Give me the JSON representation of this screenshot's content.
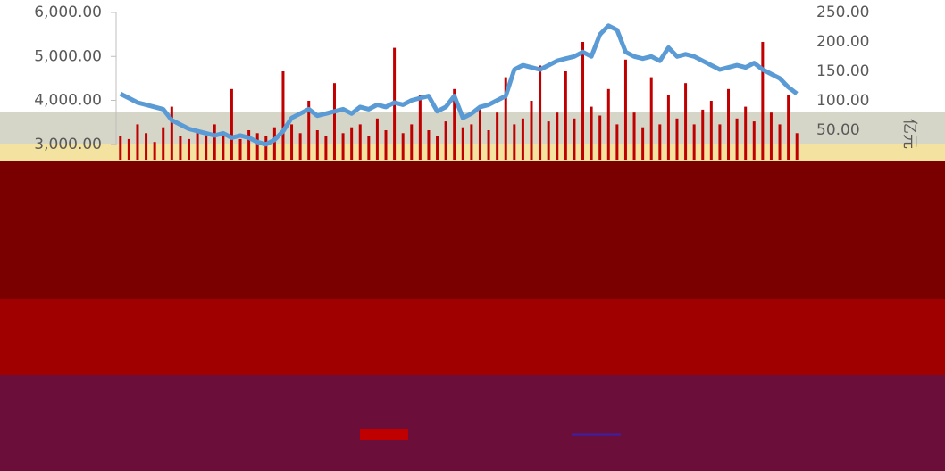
{
  "chart_data": {
    "type": "bar-line",
    "y2label": "亿元",
    "ylim": [
      2650,
      6000
    ],
    "yticks": [
      {
        "value": 6000,
        "label": "6,000.00"
      },
      {
        "value": 5000,
        "label": "5,000.00"
      },
      {
        "value": 4000,
        "label": "4,000.00"
      },
      {
        "value": 3000,
        "label": "3,000.00"
      }
    ],
    "y2lim": [
      0,
      250
    ],
    "y2ticks": [
      {
        "value": 250,
        "label": "250.00"
      },
      {
        "value": 200,
        "label": "200.00"
      },
      {
        "value": 150,
        "label": "150.00"
      },
      {
        "value": 100,
        "label": "100.00"
      },
      {
        "value": 50,
        "label": "50.00"
      }
    ],
    "series": [
      {
        "type": "bar",
        "axis": "y2",
        "color": "#c00000",
        "values": [
          40,
          35,
          60,
          45,
          30,
          55,
          90,
          40,
          35,
          50,
          45,
          60,
          40,
          120,
          35,
          50,
          45,
          40,
          55,
          150,
          60,
          45,
          100,
          50,
          40,
          130,
          45,
          55,
          60,
          40,
          70,
          50,
          190,
          45,
          60,
          110,
          50,
          40,
          65,
          120,
          55,
          60,
          90,
          50,
          80,
          140,
          60,
          70,
          100,
          160,
          65,
          80,
          150,
          70,
          200,
          90,
          75,
          120,
          60,
          170,
          80,
          55,
          140,
          60,
          110,
          70,
          130,
          60,
          85,
          100,
          60,
          120,
          70,
          90,
          65,
          200,
          80,
          60,
          110,
          45
        ]
      },
      {
        "type": "line",
        "axis": "y",
        "color": "#5b9bd5",
        "values": [
          4150,
          4050,
          3950,
          3900,
          3850,
          3800,
          3550,
          3450,
          3350,
          3300,
          3250,
          3200,
          3250,
          3150,
          3200,
          3150,
          3050,
          3000,
          3100,
          3300,
          3600,
          3700,
          3800,
          3650,
          3700,
          3750,
          3800,
          3700,
          3850,
          3800,
          3900,
          3850,
          3950,
          3900,
          4000,
          4050,
          4100,
          3750,
          3850,
          4100,
          3600,
          3700,
          3850,
          3900,
          4000,
          4100,
          4700,
          4800,
          4750,
          4700,
          4800,
          4900,
          4950,
          5000,
          5100,
          5000,
          5500,
          5700,
          5600,
          5100,
          5000,
          4950,
          5000,
          4900,
          5200,
          5000,
          5050,
          5000,
          4900,
          4800,
          4700,
          4750,
          4800,
          4750,
          4850,
          4700,
          4600,
          4500,
          4300,
          4150
        ]
      }
    ]
  }
}
